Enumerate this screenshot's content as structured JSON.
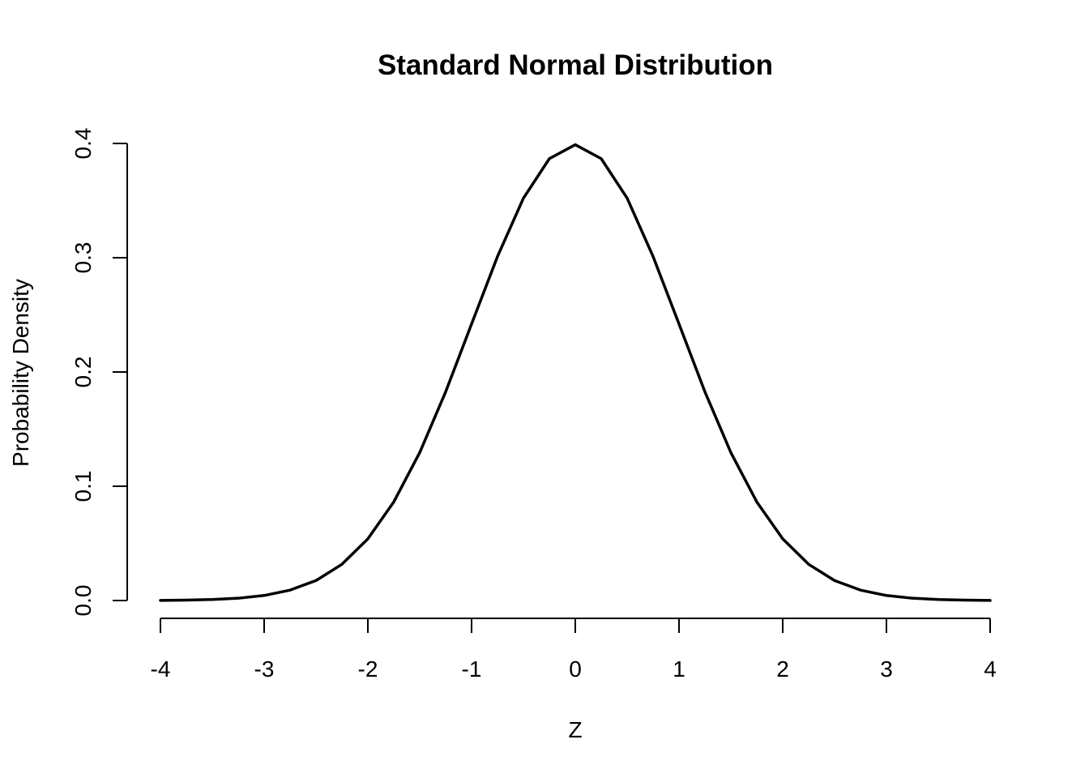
{
  "chart_data": {
    "type": "line",
    "title": "Standard Normal Distribution",
    "xlabel": "Z",
    "ylabel": "Probability Density",
    "xlim": [
      -4,
      4
    ],
    "ylim": [
      0,
      0.4
    ],
    "xticks": [
      -4,
      -3,
      -2,
      -1,
      0,
      1,
      2,
      3,
      4
    ],
    "xtick_labels": [
      "-4",
      "-3",
      "-2",
      "-1",
      "0",
      "1",
      "2",
      "3",
      "4"
    ],
    "yticks": [
      0.0,
      0.1,
      0.2,
      0.3,
      0.4
    ],
    "ytick_labels": [
      "0.0",
      "0.1",
      "0.2",
      "0.3",
      "0.4"
    ],
    "grid": false,
    "line_color": "#000000",
    "series": [
      {
        "x": [
          -4.0,
          -3.75,
          -3.5,
          -3.25,
          -3.0,
          -2.75,
          -2.5,
          -2.25,
          -2.0,
          -1.75,
          -1.5,
          -1.25,
          -1.0,
          -0.75,
          -0.5,
          -0.25,
          0.0,
          0.25,
          0.5,
          0.75,
          1.0,
          1.25,
          1.5,
          1.75,
          2.0,
          2.25,
          2.5,
          2.75,
          3.0,
          3.25,
          3.5,
          3.75,
          4.0
        ],
        "y": [
          0.0001,
          0.0004,
          0.0009,
          0.002,
          0.0044,
          0.0091,
          0.0175,
          0.0317,
          0.054,
          0.0863,
          0.1295,
          0.1826,
          0.242,
          0.3011,
          0.3521,
          0.3867,
          0.3989,
          0.3867,
          0.3521,
          0.3011,
          0.242,
          0.1826,
          0.1295,
          0.0863,
          0.054,
          0.0317,
          0.0175,
          0.0091,
          0.0044,
          0.002,
          0.0009,
          0.0004,
          0.0001
        ]
      }
    ]
  }
}
